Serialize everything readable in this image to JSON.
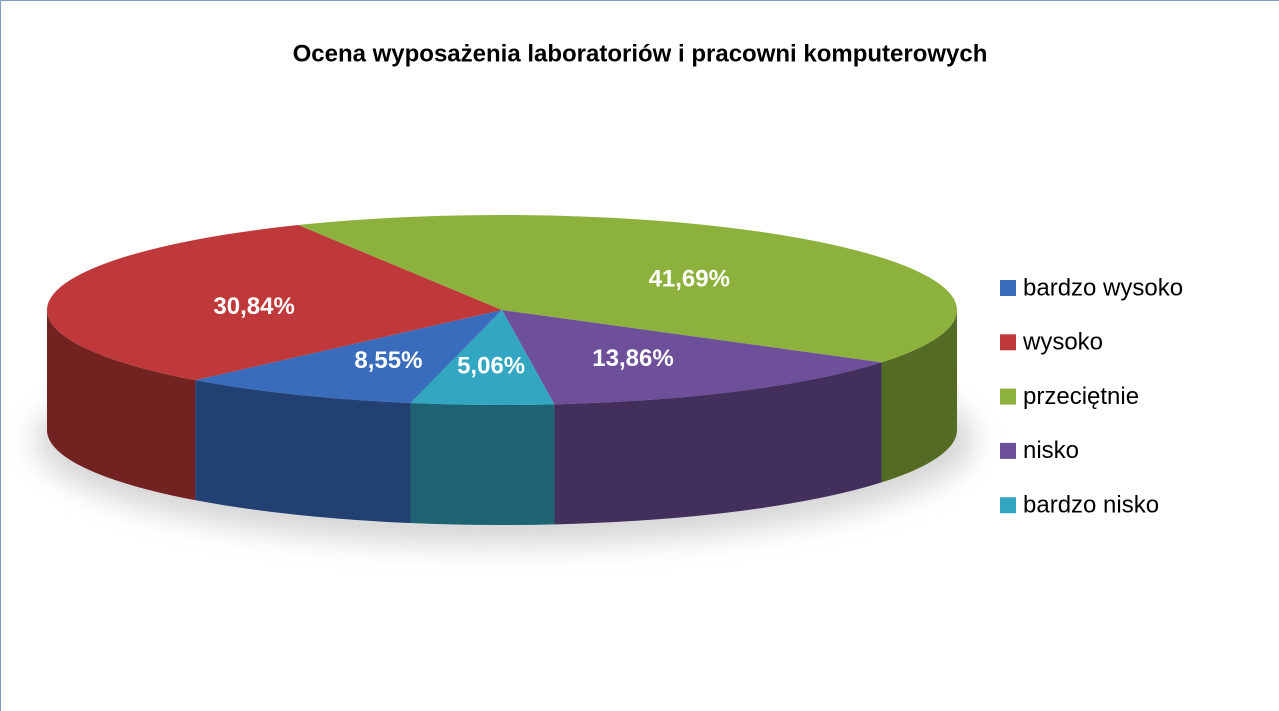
{
  "chart_data": {
    "type": "pie",
    "title": "Ocena wyposażenia laboratoriów i pracowni komputerowych",
    "categories": [
      "bardzo wysoko",
      "wysoko",
      "przeciętnie",
      "nisko",
      "bardzo nisko"
    ],
    "values": [
      8.55,
      30.84,
      41.69,
      13.86,
      5.06
    ],
    "value_labels": [
      "8,55%",
      "30,84%",
      "41,69%",
      "13,86%",
      "5,06%"
    ],
    "colors": [
      "#3a6cbc",
      "#c0393a",
      "#8cb23d",
      "#6e4f9a",
      "#33a6c2"
    ],
    "legend": "right"
  }
}
